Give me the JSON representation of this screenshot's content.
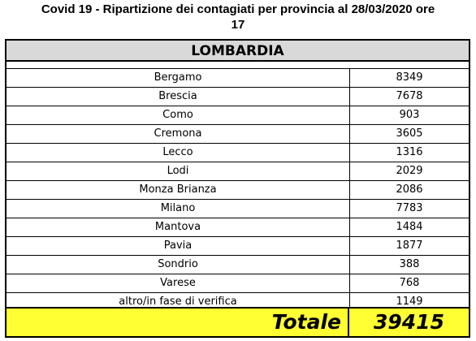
{
  "title": {
    "line1": "Covid 19 - Ripartizione dei contagiati per provincia al 28/03/2020 ore",
    "line2": "17"
  },
  "region": "LOMBARDIA",
  "rows": [
    {
      "name": "Bergamo",
      "value": "8349"
    },
    {
      "name": "Brescia",
      "value": "7678"
    },
    {
      "name": "Como",
      "value": "903"
    },
    {
      "name": "Cremona",
      "value": "3605"
    },
    {
      "name": "Lecco",
      "value": "1316"
    },
    {
      "name": "Lodi",
      "value": "2029"
    },
    {
      "name": "Monza Brianza",
      "value": "2086"
    },
    {
      "name": "Milano",
      "value": "7783"
    },
    {
      "name": "Mantova",
      "value": "1484"
    },
    {
      "name": "Pavia",
      "value": "1877"
    },
    {
      "name": "Sondrio",
      "value": "388"
    },
    {
      "name": "Varese",
      "value": "768"
    },
    {
      "name": "altro/in fase di verifica",
      "value": "1149"
    }
  ],
  "total": {
    "label": "Totale",
    "value": "39415"
  },
  "colors": {
    "header_bg": "#d9d9d9",
    "total_bg": "#ffff33",
    "border": "#000000"
  }
}
